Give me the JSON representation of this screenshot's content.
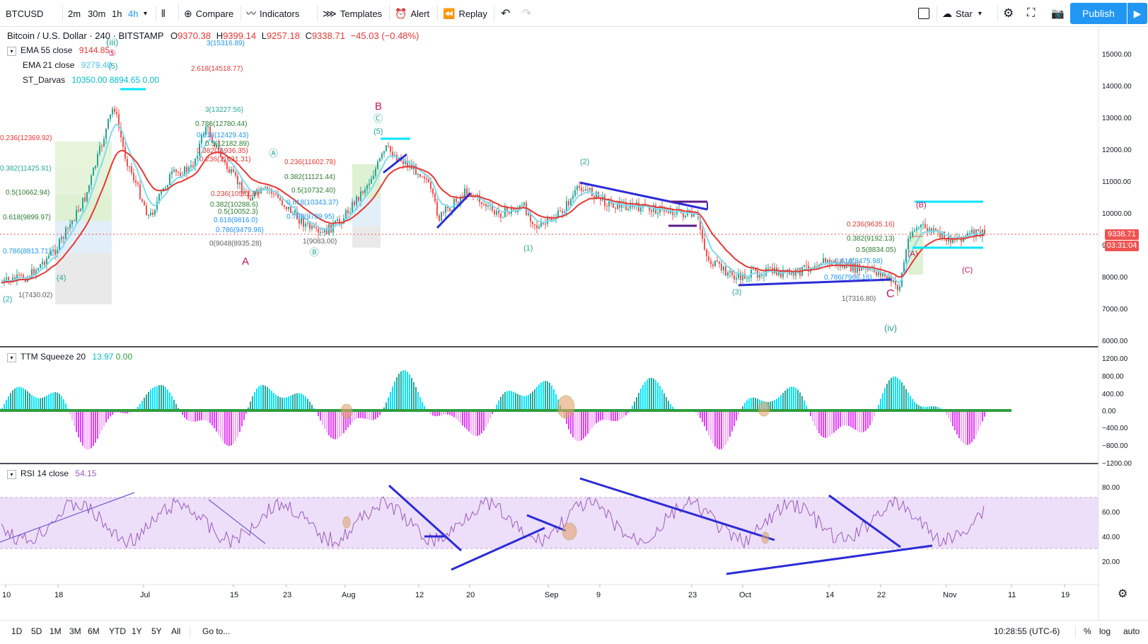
{
  "toolbar": {
    "symbol": "BTCUSD",
    "intervals": [
      "2m",
      "30m",
      "1h",
      "4h"
    ],
    "active_interval": "4h",
    "compare": "Compare",
    "indicators": "Indicators",
    "templates": "Templates",
    "alert": "Alert",
    "replay": "Replay",
    "layout_name": "Star",
    "publish": "Publish"
  },
  "colors": {
    "accent": "#2196f3",
    "up": "#26a69a",
    "down": "#ef5350",
    "ema55": "#e53935",
    "ema21": "#7fdbf0",
    "rsi": "#9c5bbd",
    "trend": "#2b2bd8"
  },
  "header": {
    "title": "Bitcoin / U.S. Dollar · 240 · BITSTAMP",
    "o_label": "O",
    "o": "9370.38",
    "h_label": "H",
    "h": "9399.14",
    "l_label": "L",
    "l": "9257.18",
    "c_label": "C",
    "c": "9338.71",
    "change": "−45.03 (−0.48%)"
  },
  "legend_main": [
    {
      "name": "EMA 55 close",
      "values": [
        "9144.85"
      ],
      "value_color": "#e53935"
    },
    {
      "name": "EMA 21 close",
      "values": [
        "9279.40"
      ],
      "value_color": "#4fc3f7"
    },
    {
      "name": "ST_Darvas",
      "values": [
        "10350.00",
        "8894.65",
        "0.00"
      ],
      "value_color": "#00bcd4"
    }
  ],
  "legend_ttm": {
    "name": "TTM Squeeze 20",
    "v1": "13.97",
    "v2": "0.00"
  },
  "legend_rsi": {
    "name": "RSI 14 close",
    "v1": "54.15"
  },
  "price_axis": [
    "15000.00",
    "14000.00",
    "13000.00",
    "12000.00",
    "11000.00",
    "10000.00",
    "9000.00",
    "8000.00",
    "7000.00",
    "6000.00"
  ],
  "ttm_axis": [
    "1200.00",
    "800.00",
    "400.00",
    "0.00",
    "−400.00",
    "−800.00",
    "−1200.00"
  ],
  "rsi_axis": [
    "80.00",
    "60.00",
    "40.00",
    "20.00"
  ],
  "time_axis": [
    "10",
    "18",
    "Jul",
    "15",
    "23",
    "Aug",
    "12",
    "20",
    "Sep",
    "9",
    "23",
    "Oct",
    "14",
    "22",
    "Nov",
    "11",
    "19"
  ],
  "last_price": "9338.71",
  "countdown": "03:31:04",
  "fib_left": [
    "0.236(12369.92)",
    "0.382(11425.91)",
    "0.5(10662.94)",
    "0.618(9899.97)",
    "0.786(8813.71)",
    "1(7430.02)"
  ],
  "fib_mid": [
    "3(15316.89)",
    "2.618(14518.77)",
    "3(13227.56)",
    "0.786(12780.44)",
    "0.618(12429.43)",
    "0.5(12182.89)",
    "0.382(11936.35)",
    "0.236(11631.31)",
    "0.236(10582.9)",
    "0.382(10288.6)",
    "0.5(10052.3)",
    "0.618(9816.0)",
    "0.786(9479.96)",
    "0(9048(8935.28)"
  ],
  "fib_aug": [
    "0.236(11602.78)",
    "0.382(11121.44)",
    "0.5(10732.40)",
    "0.618(10343.37)",
    "0.786(9789.95)",
    "1(9083.00)"
  ],
  "fib_oct": [
    "0.236(9635.16)",
    "0.382(9192.13)",
    "0.5(8834.05)",
    "0.618(8475.98)",
    "0.786(7966.16)",
    "1(7316.80)"
  ],
  "wave_labels": [
    "(iii)",
    "⑤",
    "(5)",
    "A",
    "B",
    "Ⓒ",
    "(5)",
    "C",
    "(iv)",
    "(2)",
    "(3)",
    "(4)",
    "(1)",
    "(B)",
    "(A)",
    "(C)",
    "Ⓐ",
    "Ⓑ",
    "(2)"
  ],
  "bottom": {
    "ranges": [
      "1D",
      "5D",
      "1M",
      "3M",
      "6M",
      "YTD",
      "1Y",
      "5Y",
      "All"
    ],
    "goto": "Go to...",
    "clock": "10:28:55 (UTC-6)",
    "percent": "%",
    "log": "log",
    "auto": "auto"
  }
}
